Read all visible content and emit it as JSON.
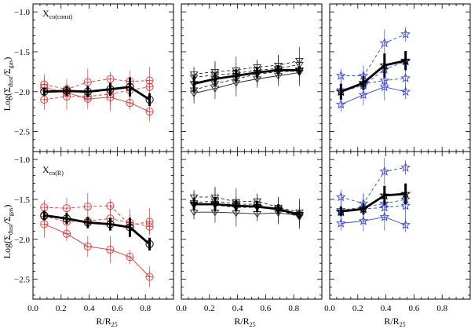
{
  "chart_data": {
    "type": "line",
    "layout": "2x3 grid of panels with shared axes",
    "xlabel": "R/R₂₅",
    "xlabel_main": "R/R",
    "xlabel_sub": "25",
    "ylabel": "Log(Σdust/Σgas)",
    "ylabel_main": "Log(Σ",
    "ylabel_sub1": "dust",
    "ylabel_mid": "/Σ",
    "ylabel_sub2": "gas",
    "ylabel_end": ")",
    "xlim": [
      0.0,
      1.0
    ],
    "ylim": [
      -2.75,
      -0.9
    ],
    "xticks": [
      0.0,
      0.2,
      0.4,
      0.6,
      0.8
    ],
    "xtick_labels": [
      "0.0",
      "0.2",
      "0.4",
      "0.6",
      "0.8"
    ],
    "yticks": [
      -1.0,
      -1.5,
      -2.0,
      -2.5
    ],
    "ytick_labels": [
      "−1.0",
      "−1.5",
      "−2.0",
      "−2.5"
    ],
    "rows": [
      {
        "annotation_main": "X",
        "annotation_sub": "co(const)",
        "annotation": "Xco(const)"
      },
      {
        "annotation_main": "X",
        "annotation_sub": "co(R)",
        "annotation": "Xco(R)"
      }
    ],
    "colors": {
      "red": "#dd3333",
      "black": "#222222",
      "blue": "#3344dd"
    },
    "panels": [
      {
        "row": 0,
        "col": 0,
        "marker": "circle",
        "color": "#dd3333",
        "series": [
          {
            "name": "dashed-1",
            "style": "dashed",
            "x": [
              0.08,
              0.24,
              0.39,
              0.55,
              0.69,
              0.83
            ],
            "y": [
              -1.91,
              -1.97,
              -1.88,
              -1.84,
              -1.87,
              -1.86
            ]
          },
          {
            "name": "dashed-2",
            "style": "dashed",
            "x": [
              0.08,
              0.24,
              0.39,
              0.55,
              0.69,
              0.83
            ],
            "y": [
              -2.1,
              -2.06,
              -2.06,
              -2.03,
              -1.98,
              -1.94
            ]
          },
          {
            "name": "solid-1",
            "style": "solid",
            "x": [
              0.08,
              0.24,
              0.39,
              0.55,
              0.69,
              0.83
            ],
            "y": [
              -1.95,
              -2.01,
              -2.09,
              -2.07,
              -2.14,
              -2.25
            ]
          }
        ],
        "mean": {
          "x": [
            0.08,
            0.24,
            0.39,
            0.55,
            0.69,
            0.83
          ],
          "y": [
            -2.0,
            -1.99,
            -2.0,
            -1.97,
            -1.94,
            -2.1
          ],
          "err": [
            0.05,
            0.06,
            0.07,
            0.08,
            0.12,
            0.08
          ]
        }
      },
      {
        "row": 0,
        "col": 1,
        "marker": "triangle-down",
        "color": "#222222",
        "series": [
          {
            "name": "dashed-1",
            "style": "dashed",
            "x": [
              0.09,
              0.24,
              0.39,
              0.54,
              0.69,
              0.84
            ],
            "y": [
              -1.78,
              -1.75,
              -1.73,
              -1.69,
              -1.67,
              -1.61
            ]
          },
          {
            "name": "dashed-2",
            "style": "dashed",
            "x": [
              0.09,
              0.24,
              0.39,
              0.54,
              0.69,
              0.84
            ],
            "y": [
              -1.82,
              -1.79,
              -1.77,
              -1.73,
              -1.71,
              -1.66
            ]
          },
          {
            "name": "dashed-3",
            "style": "dashed",
            "x": [
              0.09,
              0.24,
              0.39,
              0.54,
              0.69,
              0.84
            ],
            "y": [
              -1.98,
              -1.9,
              -1.84,
              -1.78,
              -1.75,
              -1.74
            ]
          },
          {
            "name": "solid-1",
            "style": "solid",
            "x": [
              0.09,
              0.24,
              0.39,
              0.54,
              0.69,
              0.84
            ],
            "y": [
              -2.02,
              -1.96,
              -1.89,
              -1.84,
              -1.8,
              -1.76
            ]
          }
        ],
        "mean": {
          "x": [
            0.09,
            0.24,
            0.39,
            0.54,
            0.69,
            0.84
          ],
          "y": [
            -1.9,
            -1.84,
            -1.8,
            -1.76,
            -1.73,
            -1.73
          ],
          "err": [
            0.1,
            0.08,
            0.08,
            0.07,
            0.06,
            0.05
          ]
        }
      },
      {
        "row": 0,
        "col": 2,
        "marker": "star",
        "color": "#3344dd",
        "series": [
          {
            "name": "dashed-1",
            "style": "dashed",
            "x": [
              0.08,
              0.24,
              0.39,
              0.54
            ],
            "y": [
              -1.8,
              -1.8,
              -1.39,
              -1.28
            ]
          },
          {
            "name": "dashed-2",
            "style": "dashed",
            "x": [
              0.08,
              0.24,
              0.39,
              0.54
            ],
            "y": [
              -2.0,
              -1.92,
              -1.72,
              -1.62
            ]
          },
          {
            "name": "dashed-3",
            "style": "dashed",
            "x": [
              0.08,
              0.24,
              0.39,
              0.54
            ],
            "y": [
              -1.98,
              -1.9,
              -1.86,
              -1.83
            ]
          },
          {
            "name": "solid-1",
            "style": "solid",
            "x": [
              0.08,
              0.24,
              0.39,
              0.54
            ],
            "y": [
              -2.16,
              -2.04,
              -1.94,
              -2.0
            ]
          }
        ],
        "mean": {
          "x": [
            0.08,
            0.24,
            0.39,
            0.54
          ],
          "y": [
            -2.0,
            -1.89,
            -1.67,
            -1.61
          ],
          "err": [
            0.1,
            0.09,
            0.15,
            0.12
          ]
        }
      },
      {
        "row": 1,
        "col": 0,
        "marker": "circle",
        "color": "#dd3333",
        "series": [
          {
            "name": "dashed-1",
            "style": "dashed",
            "x": [
              0.08,
              0.24,
              0.39,
              0.55,
              0.69,
              0.83
            ],
            "y": [
              -1.6,
              -1.61,
              -1.59,
              -1.58,
              -1.82,
              -1.78
            ]
          },
          {
            "name": "dashed-2",
            "style": "dashed",
            "x": [
              0.08,
              0.24,
              0.39,
              0.55,
              0.69,
              0.83
            ],
            "y": [
              -1.71,
              -1.78,
              -1.77,
              -1.74,
              -1.79,
              -1.84
            ]
          },
          {
            "name": "solid-1",
            "style": "solid",
            "x": [
              0.08,
              0.24,
              0.39,
              0.55,
              0.69,
              0.83
            ],
            "y": [
              -1.81,
              -1.93,
              -2.09,
              -2.13,
              -2.22,
              -2.47
            ]
          }
        ],
        "mean": {
          "x": [
            0.08,
            0.24,
            0.39,
            0.55,
            0.69,
            0.83
          ],
          "y": [
            -1.7,
            -1.74,
            -1.79,
            -1.81,
            -1.85,
            -2.06
          ],
          "err": [
            0.06,
            0.07,
            0.07,
            0.08,
            0.12,
            0.08
          ]
        }
      },
      {
        "row": 1,
        "col": 1,
        "marker": "triangle-down",
        "color": "#222222",
        "series": [
          {
            "name": "dashed-1",
            "style": "dashed",
            "x": [
              0.09,
              0.24,
              0.39,
              0.54,
              0.69,
              0.84
            ],
            "y": [
              -1.47,
              -1.47,
              -1.53,
              -1.52,
              -1.6,
              -1.66
            ]
          },
          {
            "name": "dashed-2",
            "style": "dashed",
            "x": [
              0.09,
              0.24,
              0.39,
              0.54,
              0.69,
              0.84
            ],
            "y": [
              -1.54,
              -1.52,
              -1.56,
              -1.56,
              -1.64,
              -1.7
            ]
          },
          {
            "name": "dashed-3",
            "style": "dashed",
            "x": [
              0.09,
              0.24,
              0.39,
              0.54,
              0.69,
              0.84
            ],
            "y": [
              -1.57,
              -1.57,
              -1.6,
              -1.6,
              -1.63,
              -1.72
            ]
          },
          {
            "name": "solid-1",
            "style": "solid",
            "x": [
              0.09,
              0.24,
              0.39,
              0.54,
              0.69,
              0.84
            ],
            "y": [
              -1.66,
              -1.66,
              -1.67,
              -1.68,
              -1.67,
              -1.7
            ]
          }
        ],
        "mean": {
          "x": [
            0.09,
            0.24,
            0.39,
            0.54,
            0.69,
            0.84
          ],
          "y": [
            -1.56,
            -1.56,
            -1.58,
            -1.59,
            -1.62,
            -1.69
          ],
          "err": [
            0.08,
            0.09,
            0.07,
            0.07,
            0.06,
            0.05
          ]
        }
      },
      {
        "row": 1,
        "col": 2,
        "marker": "star",
        "color": "#3344dd",
        "series": [
          {
            "name": "dashed-1",
            "style": "dashed",
            "x": [
              0.08,
              0.24,
              0.39,
              0.54
            ],
            "y": [
              -1.47,
              -1.55,
              -1.15,
              -1.1
            ]
          },
          {
            "name": "dashed-2",
            "style": "dashed",
            "x": [
              0.08,
              0.24,
              0.39,
              0.54
            ],
            "y": [
              -1.63,
              -1.6,
              -1.55,
              -1.5
            ]
          },
          {
            "name": "dashed-3",
            "style": "dashed",
            "x": [
              0.08,
              0.24,
              0.39,
              0.54
            ],
            "y": [
              -1.66,
              -1.62,
              -1.6,
              -1.58
            ]
          },
          {
            "name": "solid-1",
            "style": "solid",
            "x": [
              0.08,
              0.24,
              0.39,
              0.54
            ],
            "y": [
              -1.8,
              -1.77,
              -1.72,
              -1.82
            ]
          }
        ],
        "mean": {
          "x": [
            0.08,
            0.24,
            0.39,
            0.54
          ],
          "y": [
            -1.65,
            -1.62,
            -1.45,
            -1.43
          ],
          "err": [
            0.06,
            0.07,
            0.12,
            0.13
          ]
        }
      }
    ]
  }
}
